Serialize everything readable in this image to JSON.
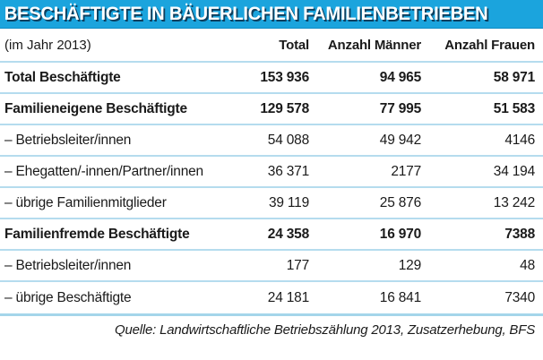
{
  "title": "BESCHÄFTIGTE IN BÄUERLICHEN FAMILIENBETRIEBEN",
  "header": {
    "period": "(im Jahr 2013)",
    "columns": [
      "Total",
      "Anzahl Männer",
      "Anzahl Frauen"
    ]
  },
  "rows": [
    {
      "label": "Total Beschäftigte",
      "bold": true,
      "total": "153 936",
      "maenner": "94 965",
      "frauen": "58 971"
    },
    {
      "label": "Familieneigene Beschäftigte",
      "bold": true,
      "total": "129 578",
      "maenner": "77 995",
      "frauen": "51 583"
    },
    {
      "label": "– Betriebsleiter/innen",
      "bold": false,
      "total": "54 088",
      "maenner": "49 942",
      "frauen": "4146"
    },
    {
      "label": "– Ehegatten/-innen/Partner/innen",
      "bold": false,
      "total": "36 371",
      "maenner": "2177",
      "frauen": "34 194"
    },
    {
      "label": "– übrige Familienmitglieder",
      "bold": false,
      "total": "39 119",
      "maenner": "25 876",
      "frauen": "13 242"
    },
    {
      "label": "Familienfremde Beschäftigte",
      "bold": true,
      "total": "24 358",
      "maenner": "16 970",
      "frauen": "7388"
    },
    {
      "label": "– Betriebsleiter/innen",
      "bold": false,
      "total": "177",
      "maenner": "129",
      "frauen": "48"
    },
    {
      "label": "– übrige Beschäftigte",
      "bold": false,
      "total": "24 181",
      "maenner": "16 841",
      "frauen": "7340"
    }
  ],
  "source": "Quelle: Landwirtschaftliche Betriebszählung 2013, Zusatzerhebung, BFS",
  "colors": {
    "title_bg": "#1ba4dd",
    "title_text": "#ffffff",
    "title_shadow": "#0d3f5e",
    "separator": "#b5dcee",
    "source_separator": "#a4d5ea",
    "text": "#1a1a1a"
  },
  "chart_data": {
    "type": "table",
    "title": "BESCHÄFTIGTE IN BÄUERLICHEN FAMILIENBETRIEBEN",
    "subtitle": "(im Jahr 2013)",
    "columns": [
      "Total",
      "Anzahl Männer",
      "Anzahl Frauen"
    ],
    "rows": [
      {
        "label": "Total Beschäftigte",
        "values": [
          153936,
          94965,
          58971
        ]
      },
      {
        "label": "Familieneigene Beschäftigte",
        "values": [
          129578,
          77995,
          51583
        ]
      },
      {
        "label": "– Betriebsleiter/innen",
        "values": [
          54088,
          49942,
          4146
        ]
      },
      {
        "label": "– Ehegatten/-innen/Partner/innen",
        "values": [
          36371,
          2177,
          34194
        ]
      },
      {
        "label": "– übrige Familienmitglieder",
        "values": [
          39119,
          25876,
          13242
        ]
      },
      {
        "label": "Familienfremde Beschäftigte",
        "values": [
          24358,
          16970,
          7388
        ]
      },
      {
        "label": "– Betriebsleiter/innen",
        "values": [
          177,
          129,
          48
        ]
      },
      {
        "label": "– übrige Beschäftigte",
        "values": [
          24181,
          16841,
          7340
        ]
      }
    ],
    "source": "Quelle: Landwirtschaftliche Betriebszählung 2013, Zusatzerhebung, BFS"
  }
}
